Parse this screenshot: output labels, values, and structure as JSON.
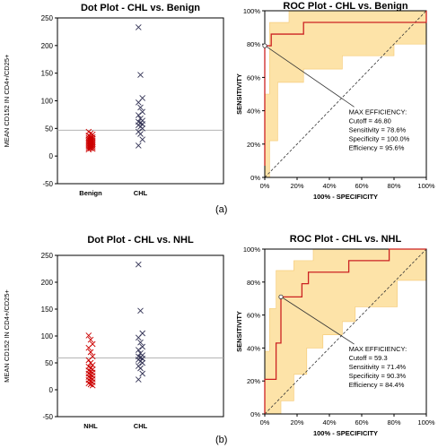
{
  "panel_labels": [
    "(a)",
    "(b)"
  ],
  "chart_data": [
    {
      "type": "scatter",
      "title": "Dot Plot -   CHL vs. Benign",
      "ylabel": "MEAN CD152 IN CD4+/CD25+",
      "categories": [
        "Benign",
        "CHL"
      ],
      "ylim": [
        -50,
        250
      ],
      "yticks": [
        -50,
        0,
        50,
        100,
        150,
        200,
        250
      ],
      "cutoff": 46.8,
      "grid": false,
      "series": [
        {
          "category": "Benign",
          "color": "#cc0000",
          "values": [
            44,
            41,
            39,
            37,
            35,
            34,
            33,
            32,
            31,
            30,
            29,
            28,
            27,
            26,
            25,
            24,
            23,
            22,
            21,
            20,
            19,
            18,
            17,
            16,
            15,
            14,
            13,
            12
          ]
        },
        {
          "category": "CHL",
          "color": "#333355",
          "values": [
            233,
            147,
            105,
            97,
            88,
            80,
            74,
            68,
            64,
            62,
            60,
            58,
            56,
            53,
            50,
            44,
            40,
            30,
            19
          ]
        }
      ]
    },
    {
      "type": "line",
      "title": "ROC Plot -   CHL vs. Benign",
      "xlabel": "100% - SPECIFICITY",
      "ylabel": "SENSITIVITY",
      "xlim": [
        0,
        100
      ],
      "ylim": [
        0,
        100
      ],
      "xticks": [
        "0%",
        "20%",
        "40%",
        "60%",
        "80%",
        "100%"
      ],
      "yticks": [
        "0%",
        "20%",
        "40%",
        "60%",
        "80%",
        "100%"
      ],
      "roc": [
        [
          0,
          7
        ],
        [
          0,
          79
        ],
        [
          4,
          79
        ],
        [
          4,
          86
        ],
        [
          24,
          86
        ],
        [
          24,
          93
        ],
        [
          100,
          93
        ],
        [
          100,
          100
        ]
      ],
      "ci_upper": [
        [
          0,
          50
        ],
        [
          3,
          50
        ],
        [
          3,
          93
        ],
        [
          15,
          93
        ],
        [
          15,
          100
        ],
        [
          100,
          100
        ]
      ],
      "ci_lower": [
        [
          0,
          0
        ],
        [
          3,
          0
        ],
        [
          3,
          22
        ],
        [
          8,
          22
        ],
        [
          8,
          57
        ],
        [
          24,
          57
        ],
        [
          24,
          65
        ],
        [
          48,
          65
        ],
        [
          48,
          73
        ],
        [
          80,
          73
        ],
        [
          80,
          80
        ],
        [
          100,
          80
        ]
      ],
      "max_point": [
        0,
        79
      ],
      "annotation": {
        "heading": "MAX EFFICIENCY:",
        "lines": [
          "Cutoff = 46.80",
          "Sensitivity = 78.6%",
          "Specificity = 100.0%",
          "Efficiency = 95.6%"
        ]
      }
    },
    {
      "type": "scatter",
      "title": "Dot Plot - CHL vs. NHL",
      "ylabel": "MEAN CD152 IN CD4+/CD25+",
      "categories": [
        "NHL",
        "CHL"
      ],
      "ylim": [
        -50,
        250
      ],
      "yticks": [
        -50,
        0,
        50,
        100,
        150,
        200,
        250
      ],
      "cutoff": 59.3,
      "grid": false,
      "series": [
        {
          "category": "NHL",
          "color": "#cc0000",
          "values": [
            101,
            93,
            85,
            78,
            70,
            62,
            55,
            50,
            46,
            43,
            40,
            38,
            36,
            34,
            32,
            30,
            28,
            26,
            24,
            22,
            20,
            18,
            16,
            14,
            12,
            10,
            8
          ]
        },
        {
          "category": "CHL",
          "color": "#333355",
          "values": [
            233,
            147,
            105,
            97,
            88,
            80,
            74,
            68,
            64,
            62,
            60,
            58,
            56,
            53,
            50,
            44,
            40,
            30,
            19
          ]
        }
      ]
    },
    {
      "type": "line",
      "title": "ROC Plot -  CHL vs. NHL",
      "xlabel": "100% - SPECIFICITY",
      "ylabel": "SENSITIVITY",
      "xlim": [
        0,
        100
      ],
      "ylim": [
        0,
        100
      ],
      "xticks": [
        "0%",
        "20%",
        "40%",
        "60%",
        "80%",
        "100%"
      ],
      "yticks": [
        "0%",
        "20%",
        "40%",
        "60%",
        "80%",
        "100%"
      ],
      "roc": [
        [
          0,
          0
        ],
        [
          0,
          21
        ],
        [
          7,
          21
        ],
        [
          7,
          43
        ],
        [
          10,
          43
        ],
        [
          10,
          71
        ],
        [
          23,
          71
        ],
        [
          23,
          79
        ],
        [
          27,
          79
        ],
        [
          27,
          86
        ],
        [
          52,
          86
        ],
        [
          52,
          93
        ],
        [
          77,
          93
        ],
        [
          77,
          100
        ],
        [
          100,
          100
        ]
      ],
      "ci_upper": [
        [
          0,
          38
        ],
        [
          3,
          38
        ],
        [
          3,
          64
        ],
        [
          7,
          64
        ],
        [
          7,
          87
        ],
        [
          18,
          87
        ],
        [
          18,
          93
        ],
        [
          30,
          93
        ],
        [
          30,
          100
        ],
        [
          100,
          100
        ]
      ],
      "ci_lower": [
        [
          0,
          0
        ],
        [
          10,
          0
        ],
        [
          10,
          8
        ],
        [
          18,
          8
        ],
        [
          18,
          24
        ],
        [
          26,
          24
        ],
        [
          26,
          40
        ],
        [
          36,
          40
        ],
        [
          36,
          48
        ],
        [
          48,
          48
        ],
        [
          48,
          56
        ],
        [
          56,
          56
        ],
        [
          56,
          65
        ],
        [
          82,
          65
        ],
        [
          82,
          81
        ],
        [
          100,
          81
        ]
      ],
      "max_point": [
        10,
        71
      ],
      "annotation": {
        "heading": "MAX EFFICIENCY:",
        "lines": [
          "Cutoff = 59.3",
          "Sensitivity = 71.4%",
          "Specificity = 90.3%",
          "Efficiency = 84.4%"
        ]
      }
    }
  ]
}
